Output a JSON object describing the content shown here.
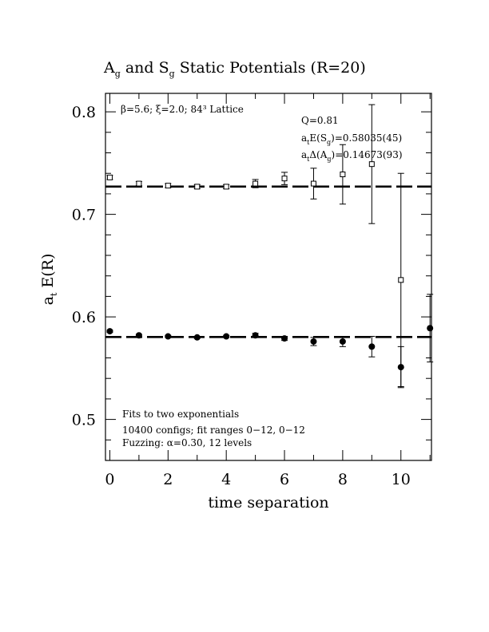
{
  "chart_data": {
    "type": "scatter",
    "title_main1": "A",
    "title_sub1": "g",
    "title_main2": " and S",
    "title_sub2": "g",
    "title_main3": " Static Potentials (R=20)",
    "xlabel": "time separation",
    "ylabel_a": "a",
    "ylabel_sub": "t",
    "ylabel_b": " E(R)",
    "xlim": [
      -0.15,
      11.05
    ],
    "ylim": [
      0.46,
      0.818
    ],
    "x_ticks": [
      0,
      2,
      4,
      6,
      8,
      10
    ],
    "x_tick_labels": [
      "0",
      "2",
      "4",
      "6",
      "8",
      "10"
    ],
    "y_ticks": [
      0.5,
      0.6,
      0.7,
      0.8
    ],
    "y_tick_labels": [
      "0.5",
      "0.6",
      "0.7",
      "0.8"
    ],
    "grid": false,
    "legend": "none",
    "annotations": {
      "top_left": "β=5.6; ξ=2.0; 84³ Lattice",
      "q": "Q=0.81",
      "fit1_a": "a",
      "fit1_sub1": "t",
      "fit1_b": "E(S",
      "fit1_sub2": "g",
      "fit1_c": ")=0.58035(45)",
      "fit2_a": "a",
      "fit2_sub1": "t",
      "fit2_b": "Δ(A",
      "fit2_sub2": "g",
      "fit2_c": ")=0.14673(93)",
      "bottom1": "Fits to two exponentials",
      "bottom2": "10400 configs; fit ranges 0−12, 0−12",
      "bottom3": "Fuzzing: α=0.30, 12 levels"
    },
    "fit_lines": [
      {
        "label": "E(Sg)",
        "y": 0.58035
      },
      {
        "label": "E(Ag)",
        "y": 0.72708
      }
    ],
    "series": [
      {
        "marker": "open-square",
        "x": [
          0,
          1,
          2,
          3,
          4,
          5,
          6,
          7,
          8,
          9,
          10
        ],
        "y": [
          0.736,
          0.73,
          0.728,
          0.727,
          0.727,
          0.73,
          0.735,
          0.73,
          0.739,
          0.749,
          0.636
        ],
        "yerr": [
          0.002,
          0.002,
          0.002,
          0.002,
          0.002,
          0.004,
          0.006,
          0.015,
          0.029,
          0.058,
          0.104
        ]
      },
      {
        "marker": "filled-circle",
        "x": [
          0,
          1,
          2,
          3,
          4,
          5,
          6,
          7,
          8,
          9,
          10,
          11
        ],
        "y": [
          0.586,
          0.582,
          0.581,
          0.58,
          0.581,
          0.582,
          0.579,
          0.576,
          0.576,
          0.571,
          0.551,
          0.589
        ],
        "yerr": [
          0.001,
          0.001,
          0.001,
          0.001,
          0.001,
          0.002,
          0.002,
          0.004,
          0.005,
          0.01,
          0.02,
          0.033
        ]
      }
    ]
  }
}
